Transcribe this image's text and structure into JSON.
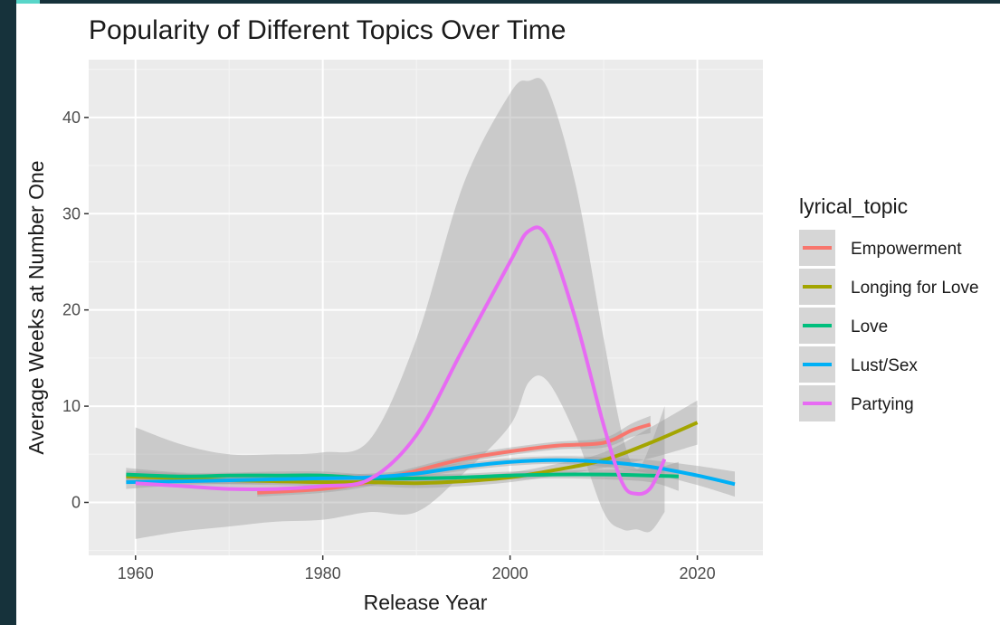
{
  "chart_data": {
    "type": "line",
    "title": "Popularity of Different Topics Over Time",
    "xlabel": "Release Year",
    "ylabel": "Average Weeks at Number One",
    "xlim": [
      1955,
      2027
    ],
    "ylim": [
      -5.5,
      46
    ],
    "x_ticks": [
      1960,
      1980,
      2000,
      2020
    ],
    "y_ticks": [
      0,
      10,
      20,
      30,
      40
    ],
    "grid": true,
    "legend_title": "lyrical_topic",
    "legend_position": "right",
    "series": [
      {
        "name": "Empowerment",
        "color": "#f8766d",
        "points": [
          [
            1973,
            1
          ],
          [
            1980,
            1.4
          ],
          [
            1985,
            2.1
          ],
          [
            1990,
            3.3
          ],
          [
            1995,
            4.5
          ],
          [
            2000,
            5.3
          ],
          [
            2005,
            5.9
          ],
          [
            2010,
            6.2
          ],
          [
            2013,
            7.5
          ],
          [
            2015,
            8.1
          ]
        ],
        "band_upper": [
          [
            1973,
            1.4
          ],
          [
            1980,
            1.8
          ],
          [
            1985,
            2.5
          ],
          [
            1990,
            3.7
          ],
          [
            1995,
            4.9
          ],
          [
            2000,
            5.7
          ],
          [
            2005,
            6.3
          ],
          [
            2010,
            6.7
          ],
          [
            2013,
            8.2
          ],
          [
            2015,
            9
          ]
        ],
        "band_lower": [
          [
            1973,
            0.6
          ],
          [
            1980,
            1
          ],
          [
            1985,
            1.7
          ],
          [
            1990,
            2.9
          ],
          [
            1995,
            4.1
          ],
          [
            2000,
            4.9
          ],
          [
            2005,
            5.5
          ],
          [
            2010,
            5.7
          ],
          [
            2013,
            6.8
          ],
          [
            2015,
            7.2
          ]
        ]
      },
      {
        "name": "Longing for Love",
        "color": "#a3a500",
        "points": [
          [
            1959,
            2.7
          ],
          [
            1965,
            2.5
          ],
          [
            1970,
            2.3
          ],
          [
            1975,
            2.2
          ],
          [
            1980,
            2.1
          ],
          [
            1985,
            2.1
          ],
          [
            1990,
            2.0
          ],
          [
            1995,
            2.2
          ],
          [
            2000,
            2.6
          ],
          [
            2005,
            3.4
          ],
          [
            2010,
            4.4
          ],
          [
            2015,
            6.2
          ],
          [
            2020,
            8.3
          ]
        ],
        "band_upper": [
          [
            1959,
            3.3
          ],
          [
            1965,
            3
          ],
          [
            1970,
            2.7
          ],
          [
            1975,
            2.6
          ],
          [
            1980,
            2.5
          ],
          [
            1985,
            2.5
          ],
          [
            1990,
            2.5
          ],
          [
            1995,
            2.7
          ],
          [
            2000,
            3.1
          ],
          [
            2005,
            4
          ],
          [
            2010,
            5.2
          ],
          [
            2015,
            7.8
          ],
          [
            2020,
            10.6
          ]
        ],
        "band_lower": [
          [
            1959,
            2.1
          ],
          [
            1965,
            2
          ],
          [
            1970,
            1.9
          ],
          [
            1975,
            1.8
          ],
          [
            1980,
            1.7
          ],
          [
            1985,
            1.7
          ],
          [
            1990,
            1.5
          ],
          [
            1995,
            1.7
          ],
          [
            2000,
            2.1
          ],
          [
            2005,
            2.8
          ],
          [
            2010,
            3.6
          ],
          [
            2015,
            4.6
          ],
          [
            2020,
            6
          ]
        ]
      },
      {
        "name": "Love",
        "color": "#00bf7d",
        "points": [
          [
            1959,
            2.9
          ],
          [
            1965,
            2.7
          ],
          [
            1970,
            2.8
          ],
          [
            1975,
            2.8
          ],
          [
            1980,
            2.8
          ],
          [
            1985,
            2.5
          ],
          [
            1990,
            2.5
          ],
          [
            1995,
            2.6
          ],
          [
            2000,
            2.8
          ],
          [
            2005,
            2.9
          ],
          [
            2010,
            2.9
          ],
          [
            2015,
            2.8
          ],
          [
            2018,
            2.7
          ]
        ],
        "band_upper": [
          [
            1959,
            3.6
          ],
          [
            1965,
            3.1
          ],
          [
            1970,
            3.1
          ],
          [
            1975,
            3.2
          ],
          [
            1980,
            3.2
          ],
          [
            1985,
            2.9
          ],
          [
            1990,
            2.9
          ],
          [
            1995,
            3
          ],
          [
            2000,
            3.2
          ],
          [
            2005,
            3.3
          ],
          [
            2010,
            3.4
          ],
          [
            2015,
            3.5
          ],
          [
            2018,
            4.2
          ]
        ],
        "band_lower": [
          [
            1959,
            2.2
          ],
          [
            1965,
            2.3
          ],
          [
            1970,
            2.5
          ],
          [
            1975,
            2.4
          ],
          [
            1980,
            2.4
          ],
          [
            1985,
            2.1
          ],
          [
            1990,
            2.1
          ],
          [
            1995,
            2.2
          ],
          [
            2000,
            2.4
          ],
          [
            2005,
            2.5
          ],
          [
            2010,
            2.4
          ],
          [
            2015,
            2.1
          ],
          [
            2018,
            1.2
          ]
        ]
      },
      {
        "name": "Lust/Sex",
        "color": "#00b0f6",
        "points": [
          [
            1959,
            2.1
          ],
          [
            1965,
            2.2
          ],
          [
            1970,
            2.3
          ],
          [
            1975,
            2.4
          ],
          [
            1980,
            2.5
          ],
          [
            1985,
            2.6
          ],
          [
            1990,
            3.0
          ],
          [
            1995,
            3.7
          ],
          [
            2000,
            4.2
          ],
          [
            2005,
            4.4
          ],
          [
            2010,
            4.2
          ],
          [
            2015,
            3.7
          ],
          [
            2020,
            2.8
          ],
          [
            2024,
            1.9
          ]
        ],
        "band_upper": [
          [
            1959,
            2.8
          ],
          [
            1965,
            2.6
          ],
          [
            1970,
            2.7
          ],
          [
            1975,
            2.8
          ],
          [
            1980,
            2.9
          ],
          [
            1985,
            3
          ],
          [
            1990,
            3.4
          ],
          [
            1995,
            4.1
          ],
          [
            2000,
            4.6
          ],
          [
            2005,
            4.8
          ],
          [
            2010,
            4.7
          ],
          [
            2015,
            4.4
          ],
          [
            2020,
            3.8
          ],
          [
            2024,
            3.2
          ]
        ],
        "band_lower": [
          [
            1959,
            1.4
          ],
          [
            1965,
            1.8
          ],
          [
            1970,
            1.9
          ],
          [
            1975,
            2
          ],
          [
            1980,
            2.1
          ],
          [
            1985,
            2.2
          ],
          [
            1990,
            2.6
          ],
          [
            1995,
            3.3
          ],
          [
            2000,
            3.8
          ],
          [
            2005,
            4
          ],
          [
            2010,
            3.7
          ],
          [
            2015,
            3
          ],
          [
            2020,
            1.8
          ],
          [
            2024,
            0.6
          ]
        ]
      },
      {
        "name": "Partying",
        "color": "#e76bf3",
        "points": [
          [
            1960,
            2
          ],
          [
            1965,
            1.7
          ],
          [
            1970,
            1.4
          ],
          [
            1975,
            1.4
          ],
          [
            1980,
            1.7
          ],
          [
            1985,
            2.4
          ],
          [
            1990,
            7
          ],
          [
            1995,
            16
          ],
          [
            2000,
            25
          ],
          [
            2002,
            28.2
          ],
          [
            2004,
            27.5
          ],
          [
            2007,
            19
          ],
          [
            2010,
            8
          ],
          [
            2012,
            2
          ],
          [
            2013.5,
            0.9
          ],
          [
            2015,
            1.5
          ],
          [
            2016.5,
            4.5
          ]
        ],
        "band_upper": [
          [
            1960,
            7.8
          ],
          [
            1965,
            6
          ],
          [
            1970,
            5
          ],
          [
            1975,
            5
          ],
          [
            1980,
            5.2
          ],
          [
            1985,
            6.5
          ],
          [
            1990,
            17
          ],
          [
            1995,
            33
          ],
          [
            2000,
            42.5
          ],
          [
            2002,
            43.8
          ],
          [
            2004,
            43
          ],
          [
            2007,
            33
          ],
          [
            2010,
            17
          ],
          [
            2012,
            7
          ],
          [
            2013.5,
            3.5
          ],
          [
            2015,
            6
          ],
          [
            2016.5,
            10
          ]
        ],
        "band_lower": [
          [
            1960,
            -3.8
          ],
          [
            1965,
            -3
          ],
          [
            1970,
            -2.5
          ],
          [
            1975,
            -2
          ],
          [
            1980,
            -1.8
          ],
          [
            1985,
            -1
          ],
          [
            1990,
            -1
          ],
          [
            1995,
            3
          ],
          [
            2000,
            8
          ],
          [
            2002,
            12.5
          ],
          [
            2004,
            12.6
          ],
          [
            2007,
            7
          ],
          [
            2010,
            -1
          ],
          [
            2012,
            -2.8
          ],
          [
            2013.5,
            -2.8
          ],
          [
            2015,
            -3
          ],
          [
            2016.5,
            -1
          ]
        ]
      }
    ]
  }
}
